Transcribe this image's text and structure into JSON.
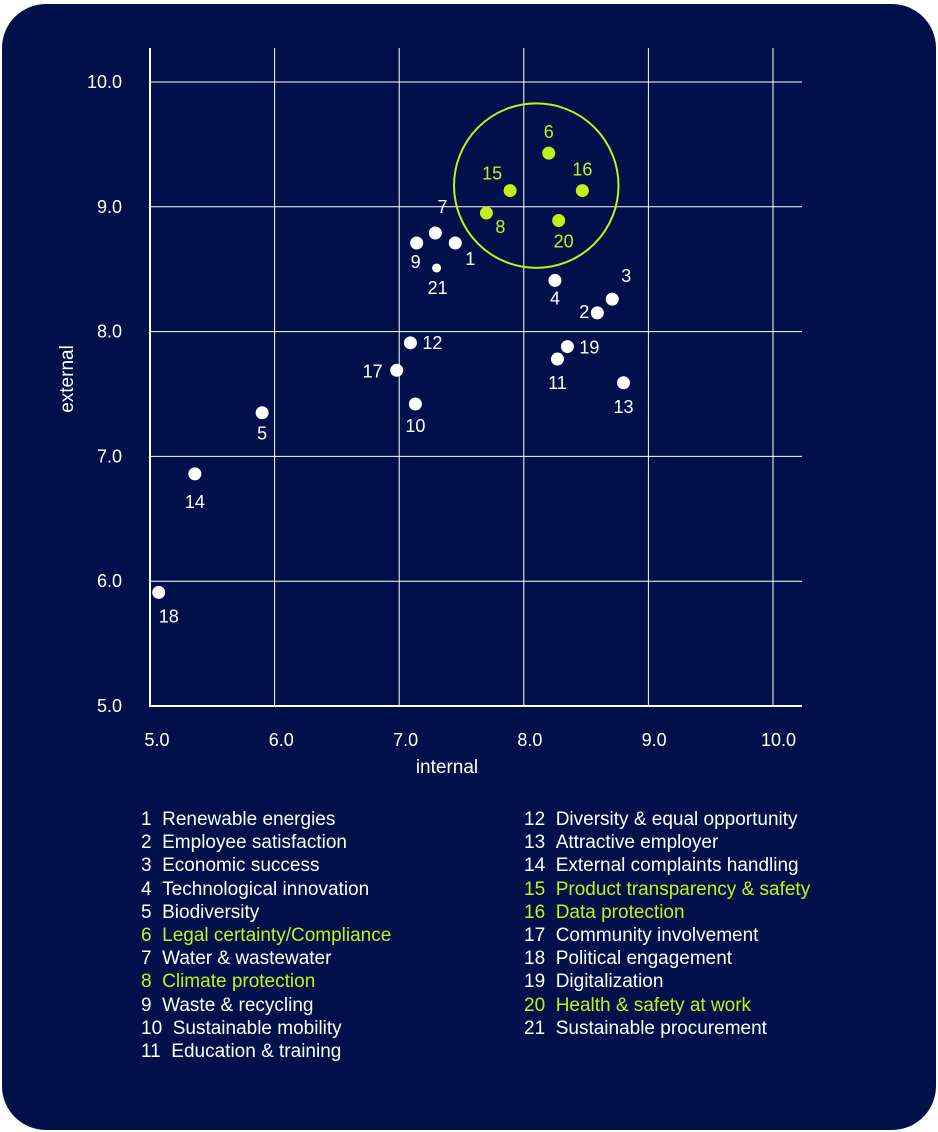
{
  "colors": {
    "background": "#00104a",
    "default_point": "#ffffff",
    "highlight": "#c2f01c",
    "grid": "#ffffff"
  },
  "chart_data": {
    "type": "scatter",
    "title": "",
    "xlabel": "internal",
    "ylabel": "external",
    "xlim": [
      5.0,
      10.0
    ],
    "ylim": [
      5.0,
      10.0
    ],
    "xticks": [
      "5.0",
      "6.0",
      "7.0",
      "8.0",
      "9.0",
      "10.0"
    ],
    "yticks": [
      "5.0",
      "6.0",
      "7.0",
      "8.0",
      "9.0",
      "10.0"
    ],
    "grid": true,
    "highlight_circle": {
      "center": [
        8.1,
        9.17
      ],
      "radius": 0.66
    },
    "points": [
      {
        "id": "1",
        "label": "Renewable energies",
        "x": 7.45,
        "y": 8.71,
        "highlight": false
      },
      {
        "id": "2",
        "label": "Employee satisfaction",
        "x": 8.59,
        "y": 8.15,
        "highlight": false
      },
      {
        "id": "3",
        "label": "Economic success",
        "x": 8.71,
        "y": 8.26,
        "highlight": false
      },
      {
        "id": "4",
        "label": "Technological innovation",
        "x": 8.25,
        "y": 8.41,
        "highlight": false
      },
      {
        "id": "5",
        "label": "Biodiversity",
        "x": 5.9,
        "y": 7.35,
        "highlight": false
      },
      {
        "id": "6",
        "label": "Legal certainty/Compliance",
        "x": 8.2,
        "y": 9.43,
        "highlight": true
      },
      {
        "id": "7",
        "label": "Water & wastewater",
        "x": 7.29,
        "y": 8.79,
        "highlight": false
      },
      {
        "id": "8",
        "label": "Climate protection",
        "x": 7.7,
        "y": 8.95,
        "highlight": true
      },
      {
        "id": "9",
        "label": "Waste & recycling",
        "x": 7.14,
        "y": 8.71,
        "highlight": false
      },
      {
        "id": "10",
        "label": "Sustainable mobility",
        "x": 7.13,
        "y": 7.42,
        "highlight": false
      },
      {
        "id": "11",
        "label": "Education & training",
        "x": 8.27,
        "y": 7.78,
        "highlight": false
      },
      {
        "id": "12",
        "label": "Diversity & equal opportunity",
        "x": 7.09,
        "y": 7.91,
        "highlight": false
      },
      {
        "id": "13",
        "label": "Attractive employer",
        "x": 8.8,
        "y": 7.59,
        "highlight": false
      },
      {
        "id": "14",
        "label": "External complaints handling",
        "x": 5.36,
        "y": 6.86,
        "highlight": false
      },
      {
        "id": "15",
        "label": "Product transparency & safety",
        "x": 7.89,
        "y": 9.13,
        "highlight": true
      },
      {
        "id": "16",
        "label": "Data protection",
        "x": 8.47,
        "y": 9.13,
        "highlight": true
      },
      {
        "id": "17",
        "label": "Community involvement",
        "x": 6.98,
        "y": 7.69,
        "highlight": false
      },
      {
        "id": "18",
        "label": "Political engagement",
        "x": 5.07,
        "y": 5.91,
        "highlight": false
      },
      {
        "id": "19",
        "label": "Digitalization",
        "x": 8.35,
        "y": 7.88,
        "highlight": false
      },
      {
        "id": "20",
        "label": "Health & safety at work",
        "x": 8.28,
        "y": 8.89,
        "highlight": true
      },
      {
        "id": "21",
        "label": "Sustainable procurement",
        "x": 7.3,
        "y": 8.51,
        "highlight": false
      }
    ]
  },
  "legend": {
    "left": [
      {
        "num": "1",
        "text": "Renewable energies",
        "highlight": false
      },
      {
        "num": "2",
        "text": "Employee satisfaction",
        "highlight": false
      },
      {
        "num": "3",
        "text": "Economic success",
        "highlight": false
      },
      {
        "num": "4",
        "text": "Technological innovation",
        "highlight": false
      },
      {
        "num": "5",
        "text": "Biodiversity",
        "highlight": false
      },
      {
        "num": "6",
        "text": "Legal certainty/Compliance",
        "highlight": true
      },
      {
        "num": "7",
        "text": "Water & wastewater",
        "highlight": false
      },
      {
        "num": "8",
        "text": "Climate protection",
        "highlight": true
      },
      {
        "num": "9",
        "text": "Waste & recycling",
        "highlight": false
      },
      {
        "num": "10",
        "text": "Sustainable mobility",
        "highlight": false
      },
      {
        "num": "11",
        "text": "Education & training",
        "highlight": false
      }
    ],
    "right": [
      {
        "num": "12",
        "text": "Diversity & equal opportunity",
        "highlight": false
      },
      {
        "num": "13",
        "text": "Attractive employer",
        "highlight": false
      },
      {
        "num": "14",
        "text": "External complaints handling",
        "highlight": false
      },
      {
        "num": "15",
        "text": "Product transparency & safety",
        "highlight": true
      },
      {
        "num": "16",
        "text": "Data protection",
        "highlight": true
      },
      {
        "num": "17",
        "text": "Community involvement",
        "highlight": false
      },
      {
        "num": "18",
        "text": "Political engagement",
        "highlight": false
      },
      {
        "num": "19",
        "text": "Digitalization",
        "highlight": false
      },
      {
        "num": "20",
        "text": "Health & safety at work",
        "highlight": true
      },
      {
        "num": "21",
        "text": "Sustainable procurement",
        "highlight": false
      }
    ]
  }
}
